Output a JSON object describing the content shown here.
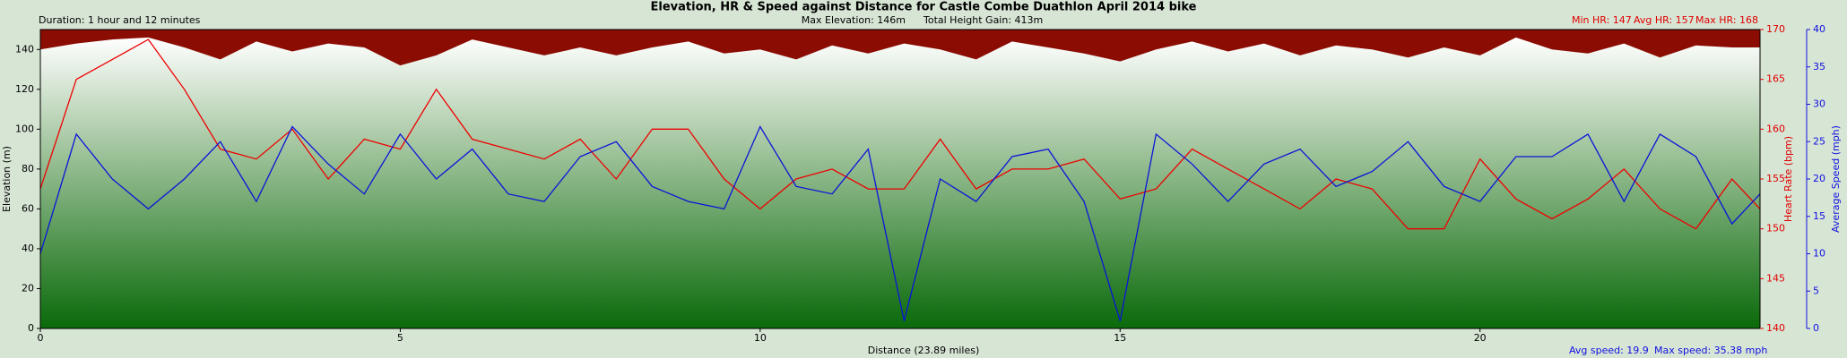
{
  "chart_data": {
    "type": "line",
    "title": "Elevation, HR & Speed against Distance for Castle Combe Duathlon April 2014 bike",
    "annotations": {
      "duration": "Duration: 1 hour and 12 minutes",
      "max_elevation": "Max Elevation: 146m",
      "height_gain": "Total Height Gain: 413m",
      "min_hr": "Min HR: 147",
      "avg_hr": "Avg HR: 157",
      "max_hr": "Max HR: 168",
      "avg_speed": "Avg speed: 19.9",
      "max_speed": "Max speed: 35.38 mph"
    },
    "xlabel": "Distance (23.89 miles)",
    "ylabel": "Elevation (m)",
    "y2label": "Heart Rate (bpm)",
    "y3label": "Average Speed (mph)",
    "xlim": [
      0,
      23.89
    ],
    "xticks": [
      0,
      5,
      10,
      15,
      20
    ],
    "ylim": [
      0,
      150
    ],
    "yticks": [
      0,
      20,
      40,
      60,
      80,
      100,
      120,
      140
    ],
    "y2lim": [
      140,
      170
    ],
    "y2ticks": [
      140,
      145,
      150,
      155,
      160,
      165,
      170
    ],
    "y3lim": [
      0,
      40
    ],
    "y3ticks": [
      0,
      5,
      10,
      15,
      20,
      25,
      30,
      35,
      40
    ],
    "sky_color": "#8b0c02",
    "x": [
      0,
      0.5,
      1,
      1.5,
      2,
      2.5,
      3,
      3.5,
      4,
      4.5,
      5,
      5.5,
      6,
      6.5,
      7,
      7.5,
      8,
      8.5,
      9,
      9.5,
      10,
      10.5,
      11,
      11.5,
      12,
      12.5,
      13,
      13.5,
      14,
      14.5,
      15,
      15.5,
      16,
      16.5,
      17,
      17.5,
      18,
      18.5,
      19,
      19.5,
      20,
      20.5,
      21,
      21.5,
      22,
      22.5,
      23,
      23.5,
      23.89
    ],
    "series": [
      {
        "axis": "y",
        "style": "area",
        "color": "#0c6a0c",
        "values": [
          140,
          143,
          145,
          146,
          141,
          135,
          144,
          139,
          143,
          141,
          132,
          137,
          145,
          141,
          137,
          141,
          137,
          141,
          144,
          138,
          140,
          135,
          142,
          138,
          143,
          140,
          135,
          144,
          141,
          138,
          134,
          140,
          144,
          139,
          143,
          137,
          142,
          140,
          136,
          141,
          137,
          146,
          140,
          138,
          143,
          136,
          142,
          141,
          141
        ]
      },
      {
        "axis": "y2",
        "style": "line",
        "color": "#ee0000",
        "values": [
          154,
          165,
          167,
          169,
          164,
          158,
          157,
          160,
          155,
          159,
          158,
          164,
          159,
          158,
          157,
          159,
          155,
          160,
          160,
          155,
          152,
          155,
          156,
          154,
          154,
          159,
          154,
          156,
          156,
          157,
          153,
          154,
          158,
          156,
          154,
          152,
          155,
          154,
          150,
          150,
          157,
          153,
          151,
          153,
          156,
          152,
          150,
          155,
          152
        ]
      },
      {
        "axis": "y3",
        "style": "line",
        "color": "#0a14d8",
        "values": [
          10,
          26,
          20,
          16,
          20,
          25,
          17,
          27,
          22,
          18,
          26,
          20,
          24,
          18,
          17,
          23,
          25,
          19,
          17,
          16,
          27,
          19,
          18,
          24,
          1,
          20,
          17,
          23,
          24,
          17,
          1,
          26,
          22,
          17,
          22,
          24,
          19,
          21,
          25,
          19,
          17,
          23,
          23,
          26,
          17,
          26,
          23,
          14,
          18
        ]
      }
    ]
  }
}
